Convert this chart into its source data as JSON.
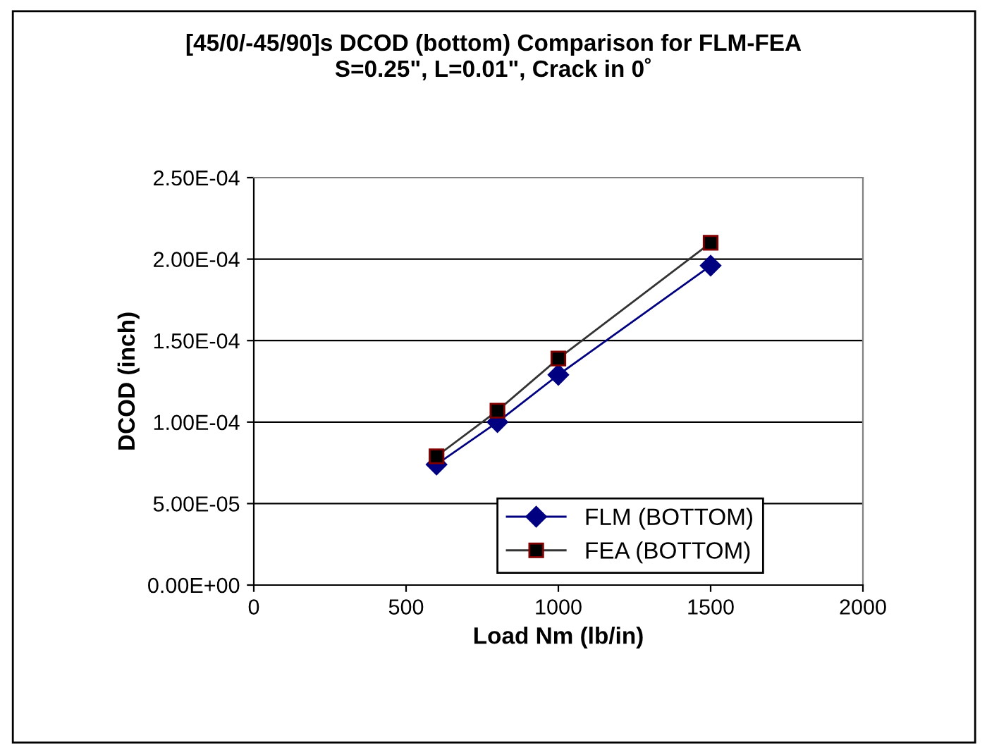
{
  "chart_data": {
    "type": "line",
    "title": "[45/0/-45/90]s DCOD (bottom) Comparison for FLM-FEA\nS=0.25\", L=0.01\", Crack in 0˚",
    "xlabel": "Load Nm (lb/in)",
    "ylabel": "DCOD (inch)",
    "x": [
      600,
      800,
      1000,
      1500
    ],
    "series": [
      {
        "name": "FLM (BOTTOM)",
        "color": "#000080",
        "marker": "diamond",
        "values": [
          7.4e-05,
          0.0001,
          0.000129,
          0.000196
        ]
      },
      {
        "name": "FEA (BOTTOM)",
        "color": "#333333",
        "marker": "square",
        "values": [
          7.9e-05,
          0.000107,
          0.000139,
          0.00021
        ]
      }
    ],
    "xlim": [
      0,
      2000
    ],
    "xticks": [
      0,
      500,
      1000,
      1500,
      2000
    ],
    "ylim": [
      0,
      0.00025
    ],
    "yticks": [
      {
        "value": 0,
        "label": "0.00E+00"
      },
      {
        "value": 5e-05,
        "label": "5.00E-05"
      },
      {
        "value": 0.0001,
        "label": "1.00E-04"
      },
      {
        "value": 0.00015,
        "label": "1.50E-04"
      },
      {
        "value": 0.0002,
        "label": "2.00E-04"
      },
      {
        "value": 0.00025,
        "label": "2.50E-04"
      }
    ],
    "grid": "y",
    "legend": "bottom right",
    "line_style": "solid"
  }
}
